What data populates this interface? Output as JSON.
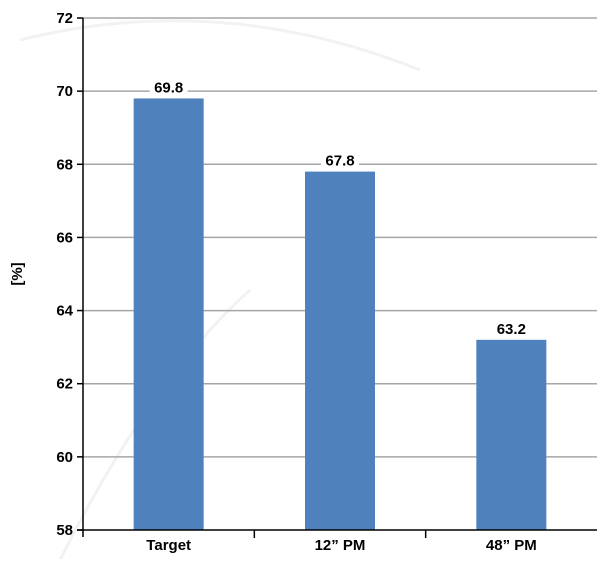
{
  "chart_data": {
    "type": "bar",
    "categories": [
      "Target",
      "12” PM",
      "48” PM"
    ],
    "values": [
      69.8,
      67.8,
      63.2
    ],
    "data_labels": [
      "69.8",
      "67.8",
      "63.2"
    ],
    "title": "",
    "xlabel": "",
    "ylabel": "[%]",
    "ylim": [
      58,
      72
    ],
    "yticks": [
      58,
      60,
      62,
      64,
      66,
      68,
      70,
      72
    ],
    "grid": true,
    "legend": "none",
    "colors": {
      "bar": "#4f81bd",
      "grid": "#a6a6a6",
      "axis": "#000000"
    }
  }
}
